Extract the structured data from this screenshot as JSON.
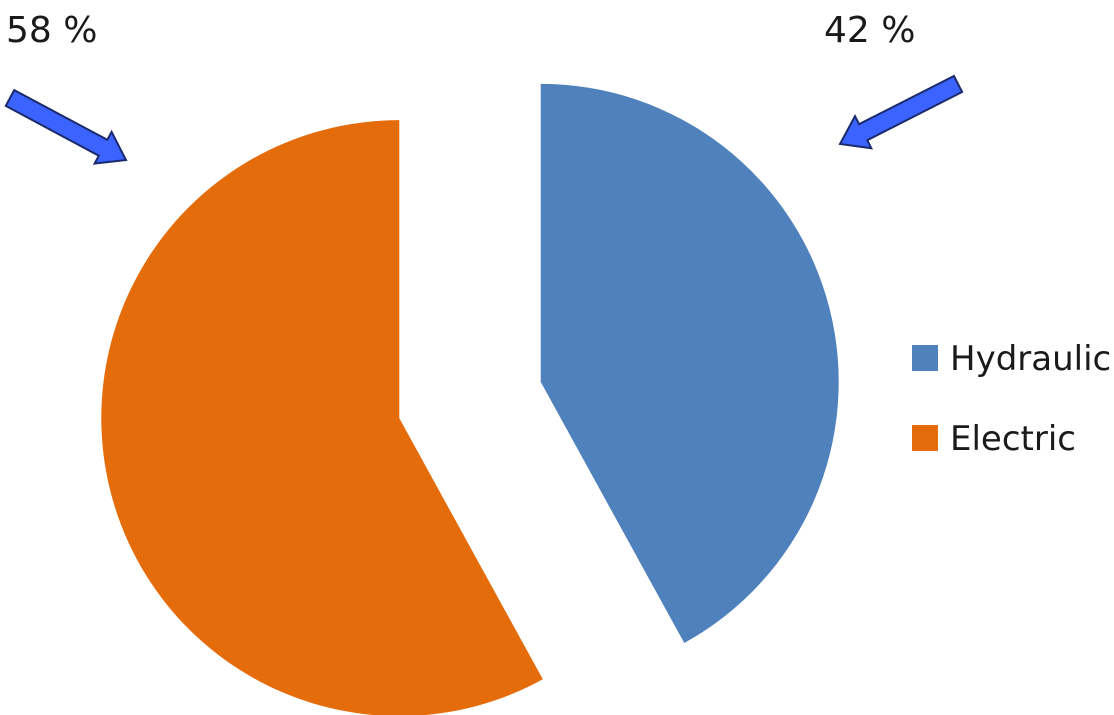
{
  "chart_data": {
    "type": "pie",
    "series": [
      {
        "name": "",
        "values": [
          42,
          58
        ]
      }
    ],
    "categories": [
      "Hydraulic",
      "Electric"
    ],
    "slices": [
      {
        "label": "Hydraulic",
        "value": 42,
        "percent_label": "42 %",
        "color": "#4f81bd",
        "exploded": true
      },
      {
        "label": "Electric",
        "value": 58,
        "percent_label": "58 %",
        "color": "#e46c0a",
        "exploded": true
      }
    ],
    "legend": {
      "position": "right",
      "items": [
        "Hydraulic",
        "Electric"
      ]
    },
    "annotations": [
      {
        "text": "58 %",
        "points_to": "Electric",
        "arrow_color": "#3366ff"
      },
      {
        "text": "42 %",
        "points_to": "Hydraulic",
        "arrow_color": "#3366ff"
      }
    ],
    "title": "",
    "start_angle": "12 o'clock, clockwise"
  }
}
